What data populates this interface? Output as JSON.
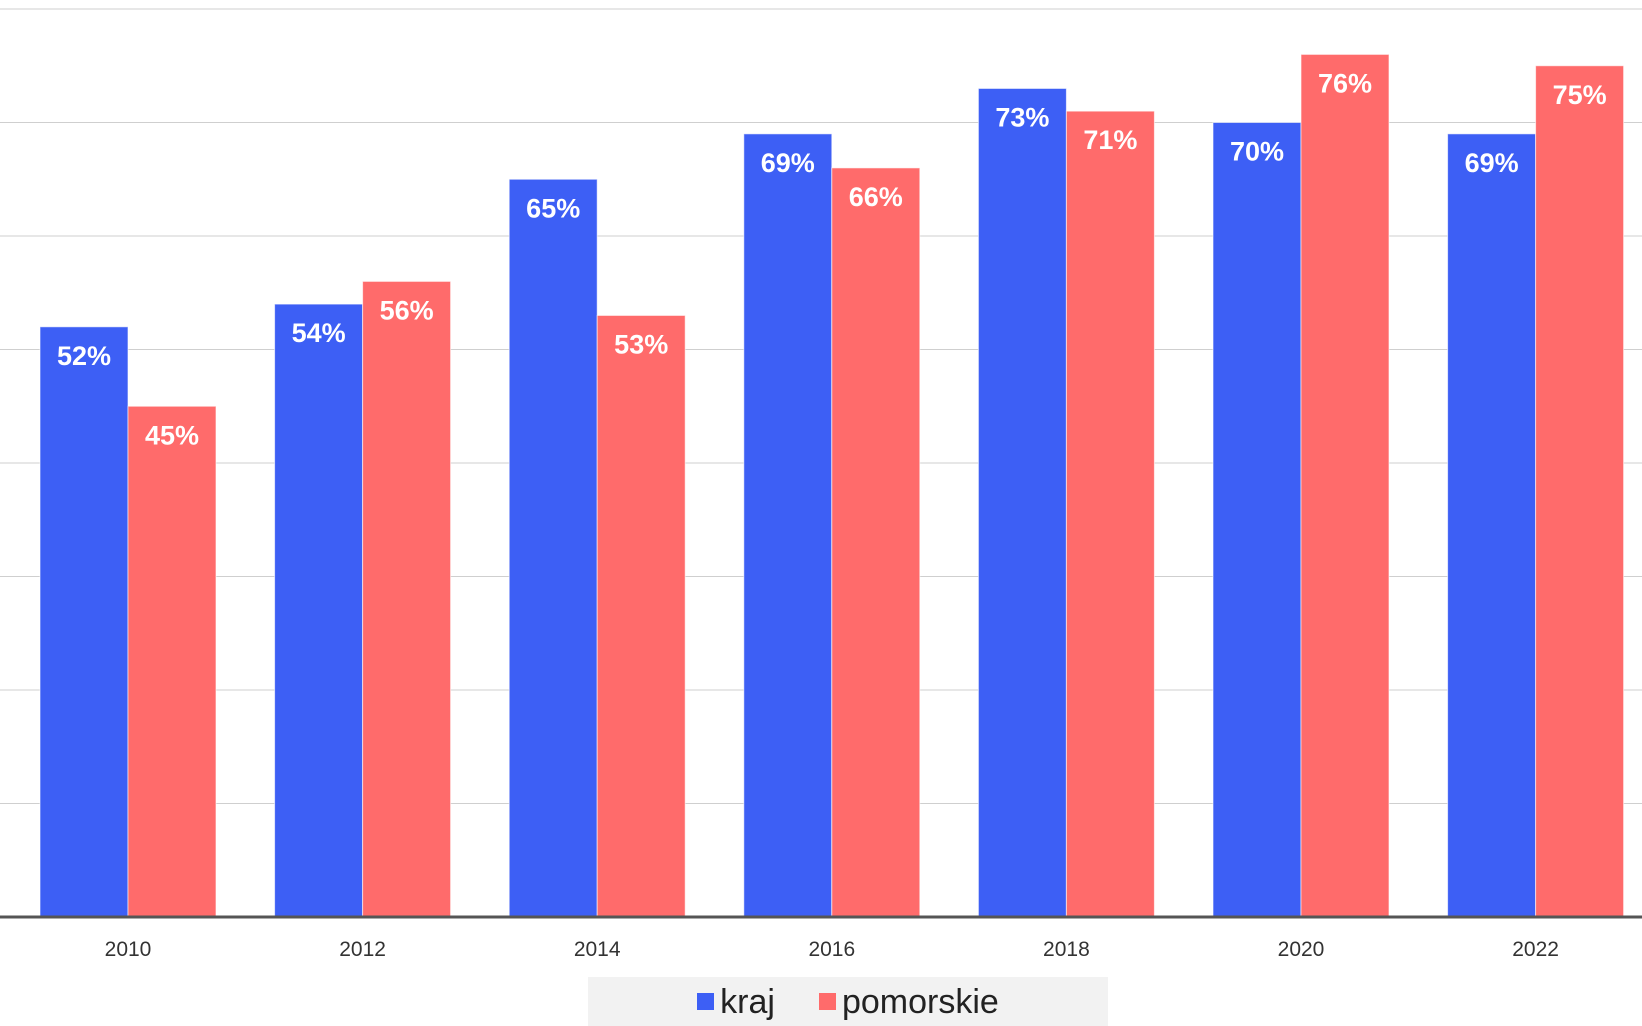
{
  "colors": {
    "kraj": "#3d5ff5",
    "pomorskie": "#ff6b6b",
    "grid": "#cfcfcf",
    "axis": "#555555"
  },
  "legend": {
    "kraj": "kraj",
    "pomorskie": "pomorskie"
  },
  "chart_data": {
    "type": "bar",
    "categories": [
      "2010",
      "2012",
      "2014",
      "2016",
      "2018",
      "2020",
      "2022"
    ],
    "series": [
      {
        "name": "kraj",
        "values": [
          52,
          54,
          65,
          69,
          73,
          70,
          69
        ],
        "labels": [
          "52%",
          "54%",
          "65%",
          "69%",
          "73%",
          "70%",
          "69%"
        ]
      },
      {
        "name": "pomorskie",
        "values": [
          45,
          56,
          53,
          66,
          71,
          76,
          75
        ],
        "labels": [
          "45%",
          "56%",
          "53%",
          "66%",
          "71%",
          "76%",
          "75%"
        ]
      }
    ],
    "ylim": [
      0,
      80
    ],
    "grid": true,
    "legend_position": "bottom-center",
    "data_labels": "inside-top"
  }
}
